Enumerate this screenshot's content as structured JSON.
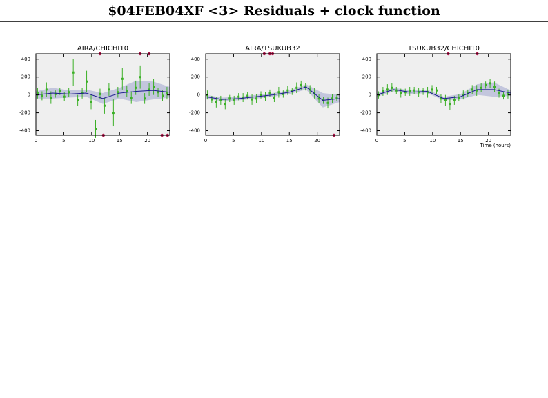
{
  "title": "$04FEB04XF <3> Residuals + clock function",
  "chart_data": [
    {
      "type": "scatter",
      "title": "AIRA/CHICHI10",
      "xlim": [
        0,
        24
      ],
      "ylim": [
        -450,
        460
      ],
      "xticks": [
        0,
        5,
        10,
        15,
        20
      ],
      "yticks": [
        -400,
        -200,
        0,
        200,
        400
      ],
      "band": {
        "color": "#c3c6dd",
        "x": [
          0,
          3,
          6,
          9,
          12,
          15,
          18,
          21,
          24
        ],
        "lower": [
          -40,
          -40,
          -30,
          -20,
          -100,
          -40,
          -80,
          -50,
          -30
        ],
        "upper": [
          40,
          80,
          50,
          60,
          20,
          80,
          160,
          150,
          90
        ]
      },
      "line": {
        "color": "#1a1a8c",
        "x": [
          0,
          3,
          6,
          9,
          12,
          15,
          18,
          21,
          24
        ],
        "values": [
          0,
          20,
          10,
          20,
          -40,
          20,
          40,
          50,
          30
        ]
      },
      "points": {
        "color": "#3cb027",
        "x": [
          0.3,
          1.1,
          1.9,
          2.7,
          3.5,
          4.3,
          5.1,
          5.9,
          6.7,
          7.5,
          8.3,
          9.1,
          9.9,
          10.7,
          11.5,
          12.3,
          13.1,
          13.9,
          14.7,
          15.5,
          16.3,
          17.1,
          17.9,
          18.7,
          19.5,
          20.3,
          21.1,
          21.9,
          22.7,
          23.5
        ],
        "values": [
          20,
          -10,
          60,
          -30,
          10,
          40,
          -20,
          30,
          250,
          -60,
          20,
          150,
          -80,
          -380,
          10,
          -120,
          60,
          -200,
          30,
          180,
          40,
          -30,
          80,
          200,
          -40,
          60,
          90,
          30,
          -10,
          20
        ],
        "errors": [
          60,
          50,
          80,
          70,
          40,
          40,
          50,
          50,
          150,
          60,
          60,
          120,
          80,
          100,
          60,
          90,
          70,
          150,
          60,
          120,
          60,
          70,
          80,
          130,
          60,
          70,
          90,
          50,
          60,
          70
        ]
      },
      "outliers": {
        "color": "#b0154a",
        "x": [
          11.5,
          18.7,
          20.3,
          12.1,
          22.6,
          23.6
        ],
        "values": [
          460,
          460,
          460,
          -450,
          -450,
          -450
        ]
      }
    },
    {
      "type": "scatter",
      "title": "AIRA/TSUKUB32",
      "xlim": [
        0,
        24
      ],
      "ylim": [
        -450,
        460
      ],
      "xticks": [
        0,
        5,
        10,
        15,
        20
      ],
      "yticks": [
        -400,
        -200,
        0,
        200,
        400
      ],
      "band": {
        "color": "#c3c6dd",
        "x": [
          0,
          3,
          6,
          9,
          12,
          15,
          18,
          21,
          24
        ],
        "lower": [
          -40,
          -70,
          -60,
          -40,
          -20,
          10,
          60,
          -140,
          -80
        ],
        "upper": [
          0,
          -30,
          -20,
          0,
          20,
          50,
          120,
          20,
          0
        ]
      },
      "line": {
        "color": "#1a1a8c",
        "x": [
          0,
          3,
          6,
          9,
          12,
          15,
          18,
          21,
          24
        ],
        "values": [
          -20,
          -50,
          -40,
          -20,
          0,
          30,
          90,
          -60,
          -40
        ]
      },
      "points": {
        "color": "#3cb027",
        "x": [
          0.3,
          1.1,
          1.9,
          2.7,
          3.5,
          4.3,
          5.1,
          5.9,
          6.7,
          7.5,
          8.3,
          9.1,
          9.9,
          10.7,
          11.5,
          12.3,
          13.1,
          13.9,
          14.7,
          15.5,
          16.3,
          17.1,
          17.9,
          18.7,
          19.5,
          20.3,
          21.1,
          21.9,
          22.7,
          23.5
        ],
        "values": [
          0,
          -50,
          -80,
          -60,
          -100,
          -40,
          -60,
          -20,
          -30,
          -10,
          -50,
          -40,
          0,
          -20,
          20,
          -30,
          30,
          10,
          50,
          40,
          80,
          110,
          90,
          60,
          20,
          -40,
          -60,
          -90,
          -40,
          -30
        ],
        "errors": [
          50,
          40,
          60,
          50,
          60,
          40,
          50,
          40,
          50,
          40,
          60,
          50,
          40,
          50,
          40,
          50,
          60,
          40,
          50,
          40,
          60,
          50,
          40,
          50,
          60,
          50,
          40,
          60,
          50,
          40
        ]
      },
      "outliers": {
        "color": "#b0154a",
        "x": [
          10.5,
          11.5,
          12,
          23
        ],
        "values": [
          460,
          460,
          460,
          -450
        ]
      }
    },
    {
      "type": "scatter",
      "title": "TSUKUB32/CHICHI10",
      "x_label": "Time (hours)",
      "xlim": [
        0,
        24
      ],
      "ylim": [
        -450,
        460
      ],
      "xticks": [
        0,
        5,
        10,
        15,
        20
      ],
      "yticks": [
        -400,
        -200,
        0,
        200,
        400
      ],
      "band": {
        "color": "#c3c6dd",
        "x": [
          0,
          3,
          6,
          9,
          12,
          15,
          18,
          21,
          24
        ],
        "lower": [
          -20,
          40,
          10,
          20,
          -60,
          -50,
          0,
          -20,
          -10
        ],
        "upper": [
          20,
          80,
          50,
          60,
          -20,
          10,
          120,
          140,
          50
        ]
      },
      "line": {
        "color": "#1a1a8c",
        "x": [
          0,
          3,
          6,
          9,
          12,
          15,
          18,
          21,
          24
        ],
        "values": [
          0,
          60,
          30,
          40,
          -40,
          -20,
          60,
          60,
          20
        ]
      },
      "points": {
        "color": "#3cb027",
        "x": [
          0.3,
          1.1,
          1.9,
          2.7,
          3.5,
          4.3,
          5.1,
          5.9,
          6.7,
          7.5,
          8.3,
          9.1,
          9.9,
          10.7,
          11.5,
          12.3,
          13.1,
          13.9,
          14.7,
          15.5,
          16.3,
          17.1,
          17.9,
          18.7,
          19.5,
          20.3,
          21.1,
          21.9,
          22.7,
          23.5
        ],
        "values": [
          0,
          40,
          60,
          80,
          50,
          20,
          30,
          40,
          50,
          30,
          40,
          30,
          60,
          50,
          -40,
          -60,
          -100,
          -60,
          -30,
          0,
          20,
          60,
          50,
          80,
          110,
          130,
          90,
          20,
          -10,
          10
        ],
        "errors": [
          40,
          50,
          60,
          50,
          40,
          50,
          40,
          50,
          40,
          50,
          40,
          60,
          50,
          40,
          50,
          60,
          70,
          50,
          40,
          50,
          40,
          50,
          60,
          50,
          40,
          50,
          60,
          50,
          40,
          50
        ]
      },
      "outliers": {
        "color": "#b0154a",
        "x": [
          12.8,
          18
        ],
        "values": [
          460,
          460
        ]
      }
    }
  ]
}
